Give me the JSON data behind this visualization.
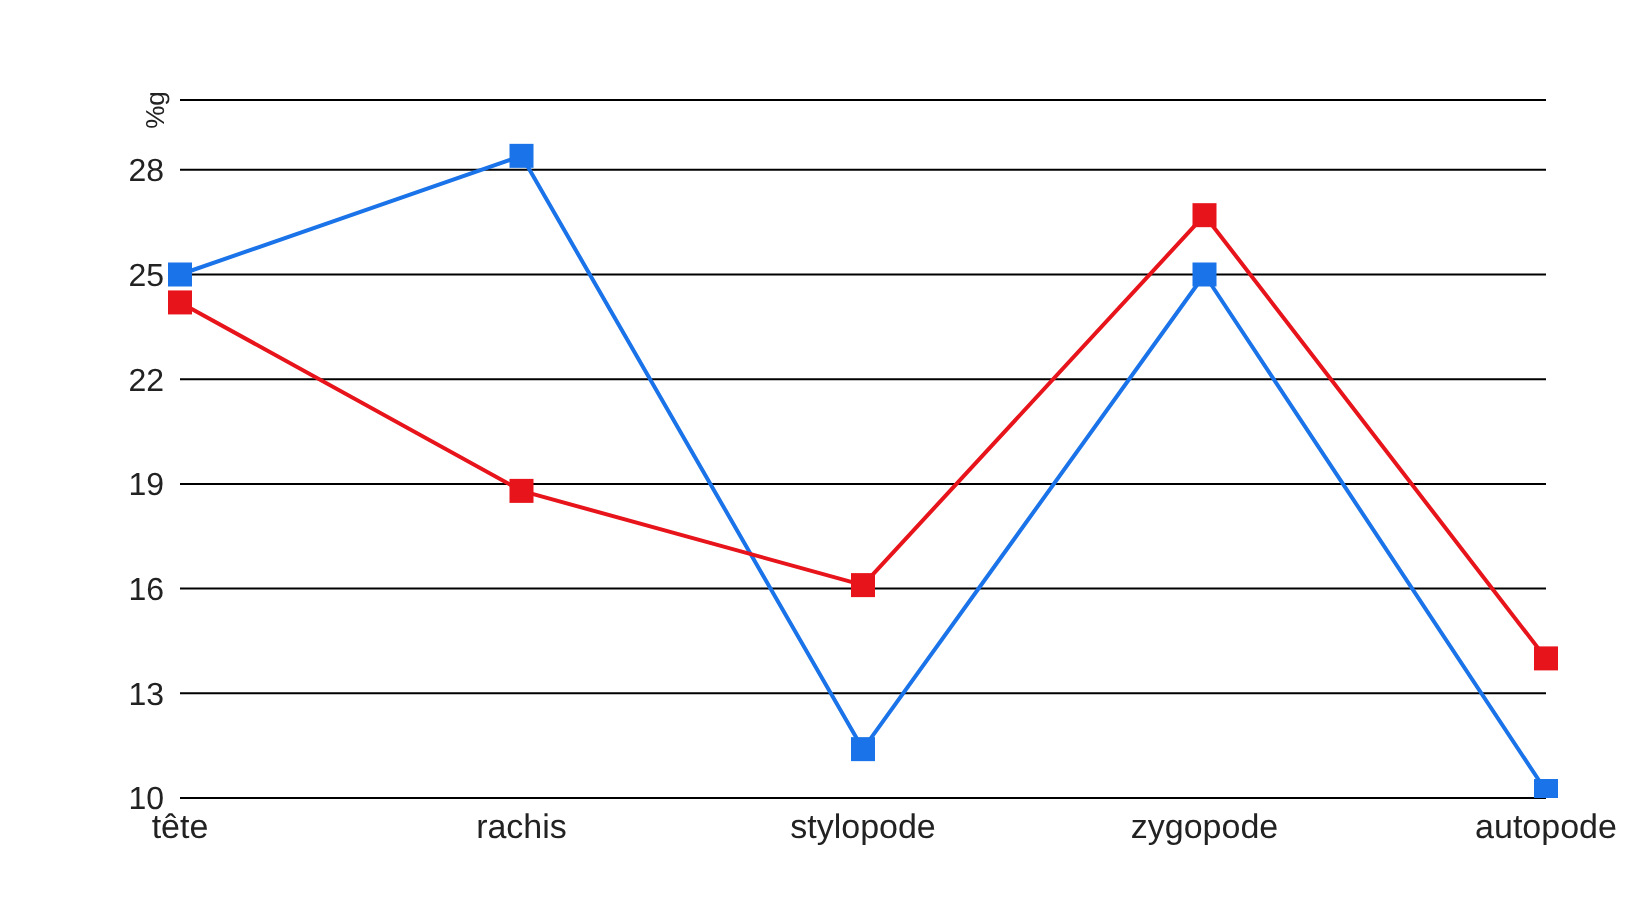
{
  "chart_data": {
    "type": "line",
    "ylabel": "%g",
    "categories": [
      "tête",
      "rachis",
      "stylopode",
      "zygopode",
      "autopode"
    ],
    "series": [
      {
        "color": "#1a73e8",
        "values": [
          25.0,
          28.4,
          11.4,
          25.0,
          10.2
        ]
      },
      {
        "color": "#e8141b",
        "values": [
          24.2,
          18.8,
          16.1,
          26.7,
          14.0
        ]
      }
    ],
    "ylim": [
      10,
      30
    ],
    "yticks": [
      10,
      13,
      16,
      19,
      22,
      25,
      28
    ],
    "grid": "y",
    "legend": false,
    "marker": "square",
    "line_style": "solid"
  }
}
